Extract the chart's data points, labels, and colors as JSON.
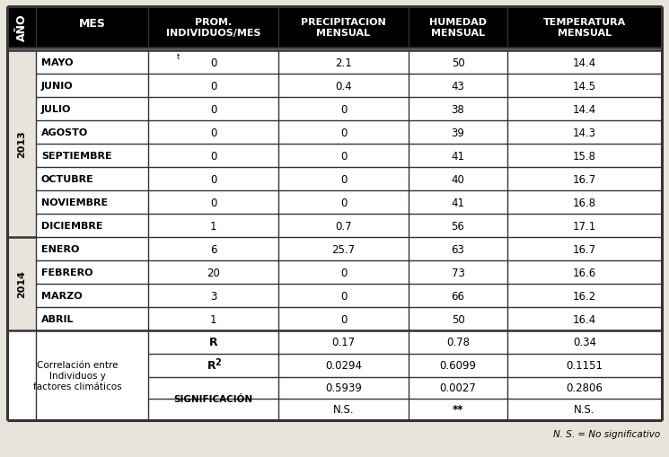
{
  "data_rows": [
    [
      "MAYO",
      "0",
      "2.1",
      "50",
      "14.4"
    ],
    [
      "JUNIO",
      "0",
      "0.4",
      "43",
      "14.5"
    ],
    [
      "JULIO",
      "0",
      "0",
      "38",
      "14.4"
    ],
    [
      "AGOSTO",
      "0",
      "0",
      "39",
      "14.3"
    ],
    [
      "SEPTIEMBRE",
      "0",
      "0",
      "41",
      "15.8"
    ],
    [
      "OCTUBRE",
      "0",
      "0",
      "40",
      "16.7"
    ],
    [
      "NOVIEMBRE",
      "0",
      "0",
      "41",
      "16.8"
    ],
    [
      "DICIEMBRE",
      "1",
      "0.7",
      "56",
      "17.1"
    ],
    [
      "ENERO",
      "6",
      "25.7",
      "63",
      "16.7"
    ],
    [
      "FEBRERO",
      "20",
      "0",
      "73",
      "16.6"
    ],
    [
      "MARZO",
      "3",
      "0",
      "66",
      "16.2"
    ],
    [
      "ABRIL",
      "1",
      "0",
      "50",
      "16.4"
    ]
  ],
  "corr_label": "Correlación entre\nIndividuos y\nfactores climáticos",
  "r_values": [
    "0.17",
    "0.78",
    "0.34"
  ],
  "r2_values": [
    "0.0294",
    "0.6099",
    "0.1151"
  ],
  "sig_values": [
    "0.5939",
    "0.0027",
    "0.2806"
  ],
  "sig_labels": [
    "N.S.",
    "**",
    "N.S."
  ],
  "footnote": "N. S. = No significativo",
  "header_bg": "#000000",
  "header_fg": "#ffffff",
  "row_bg": "#ffffff",
  "corr_bg": "#ffffff",
  "border_color": "#333333",
  "text_color": "#000000",
  "fig_bg": "#e8e4dc"
}
